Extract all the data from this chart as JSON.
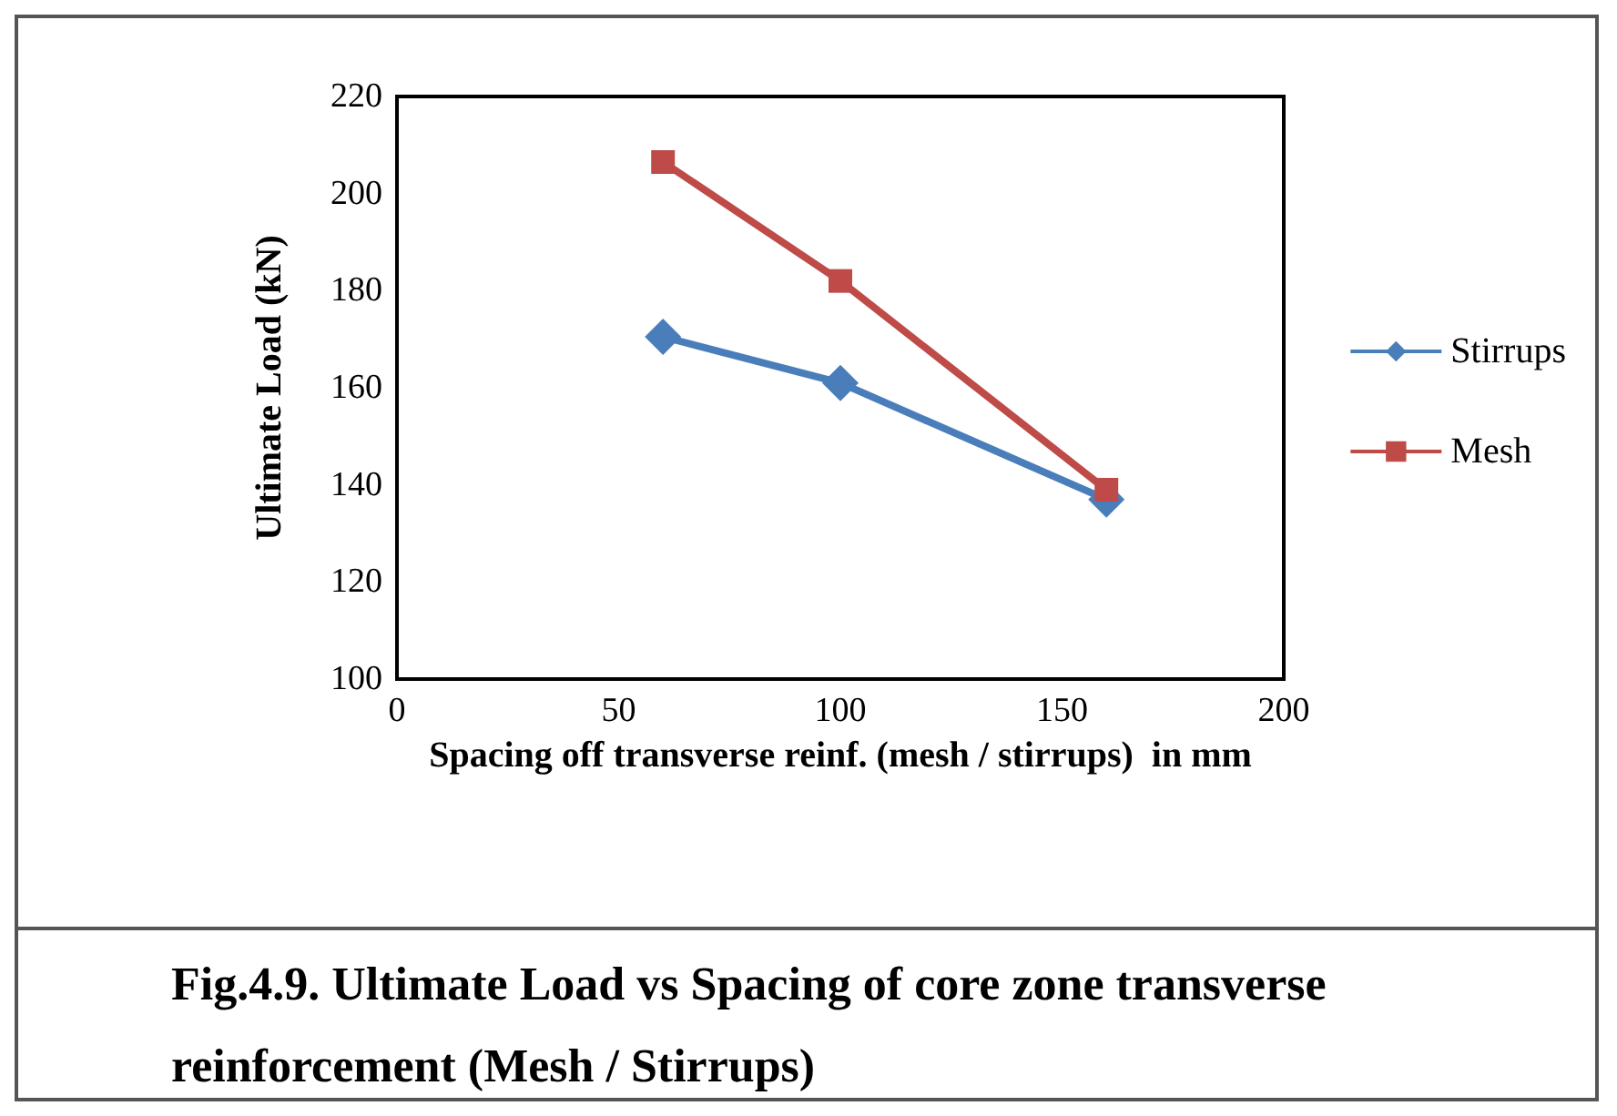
{
  "chart_data": {
    "type": "line",
    "xlabel": "Spacing off transverse reinf. (mesh / stirrups)  in mm",
    "ylabel": "Ultimate Load (kN)",
    "x": [
      60,
      100,
      160
    ],
    "series": [
      {
        "name": "Stirrups",
        "color": "#4a7ebb",
        "values": [
          170.5,
          161,
          137
        ],
        "marker": "diamond"
      },
      {
        "name": "Mesh",
        "color": "#be4b48",
        "values": [
          206.5,
          182,
          139
        ],
        "marker": "square"
      }
    ],
    "xlim": [
      0,
      200
    ],
    "xticks": [
      0,
      50,
      100,
      150,
      200
    ],
    "ylim": [
      100,
      220
    ],
    "yticks": [
      100,
      120,
      140,
      160,
      180,
      200,
      220
    ],
    "grid": false,
    "legend": "right",
    "annotations": [
      "Fig.4.9. Ultimate Load vs Spacing of core zone transverse reinforcement (Mesh / Stirrups)"
    ]
  }
}
